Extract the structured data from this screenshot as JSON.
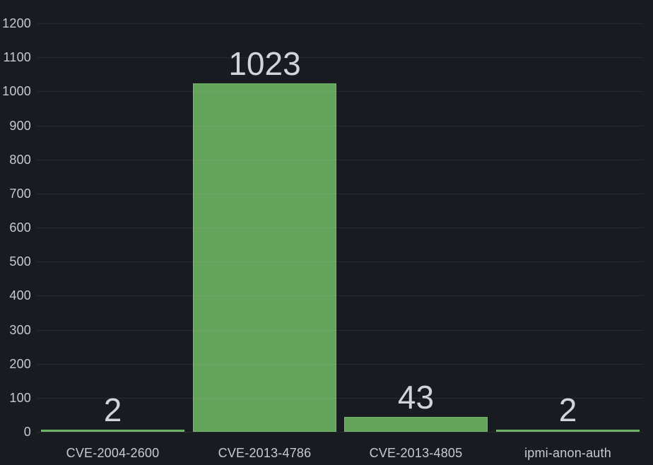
{
  "panel": {
    "background": "#181B1F"
  },
  "chart_data": {
    "type": "bar",
    "title": "",
    "xlabel": "",
    "ylabel": "",
    "categories": [
      "CVE-2004-2600",
      "CVE-2013-4786",
      "CVE-2013-4805",
      "ipmi-anon-auth"
    ],
    "values": [
      2,
      1023,
      43,
      2
    ],
    "bar_value_labels": [
      "2",
      "1023",
      "43",
      "2"
    ],
    "ylim": [
      0,
      1200
    ],
    "y_tick_step": 100,
    "y_tick_labels": [
      "0",
      "100",
      "200",
      "300",
      "400",
      "500",
      "600",
      "700",
      "800",
      "900",
      "1000",
      "1100",
      "1200"
    ],
    "grid": "horizontal",
    "legend_position": "none",
    "colors": {
      "background": "#181B1F",
      "bar_fill": "rgba(115,191,105,0.83)",
      "bar_border": "#73BF69",
      "axis_label": "#C8C9D2",
      "value_label": "#D2D3DB",
      "gridline": "rgba(204,204,220,0.09)"
    }
  }
}
